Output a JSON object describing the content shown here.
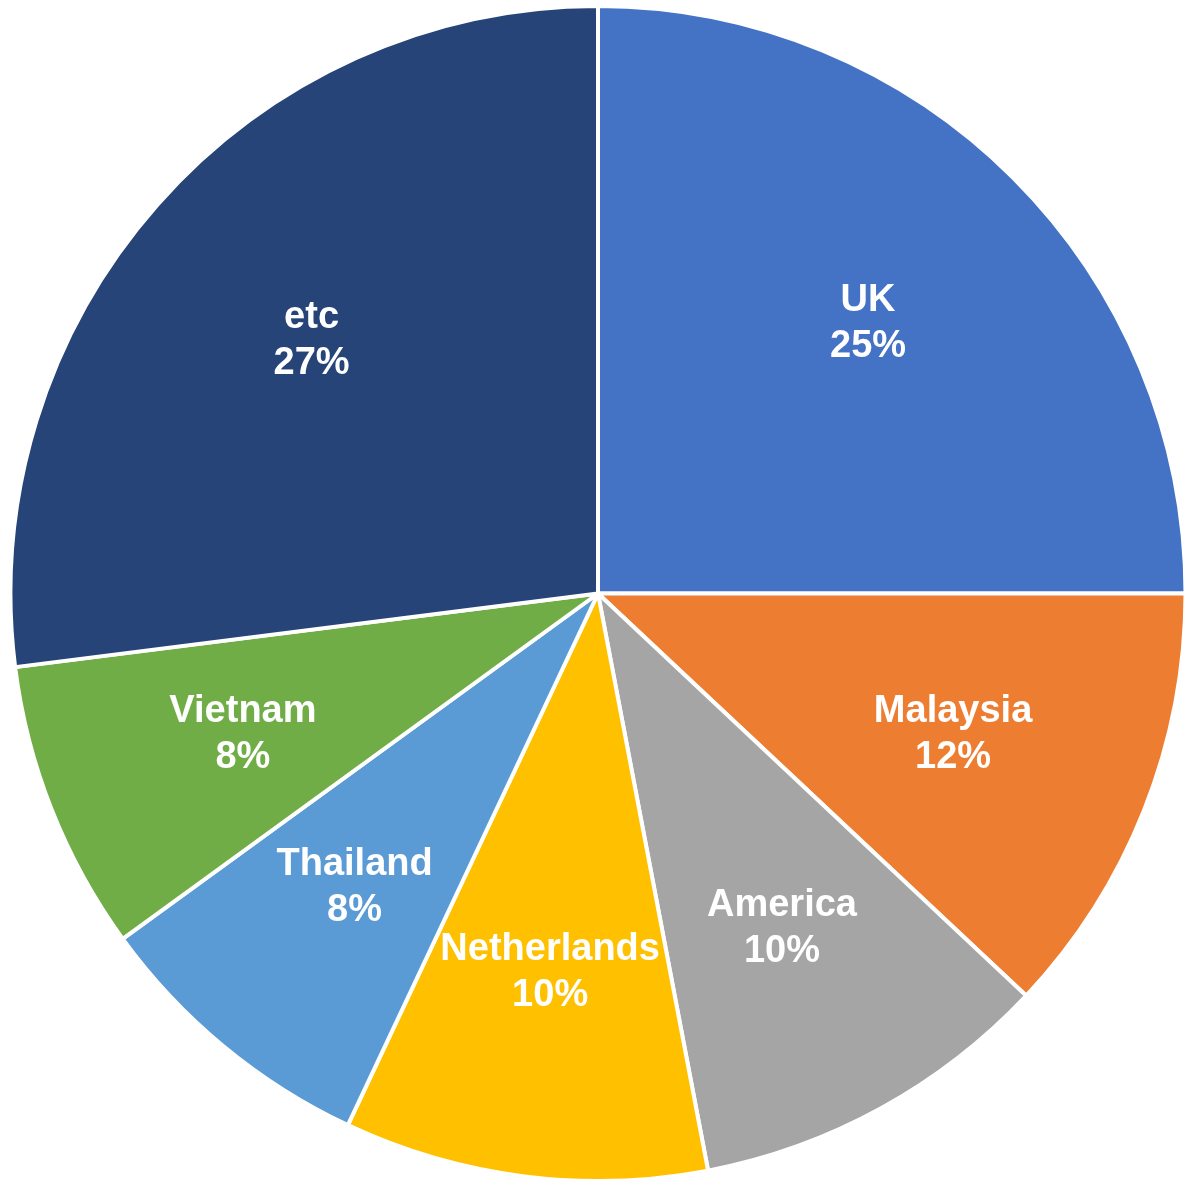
{
  "chart_data": {
    "type": "pie",
    "categories": [
      "UK",
      "Malaysia",
      "America",
      "Netherlands",
      "Thailand",
      "Vietnam",
      "etc"
    ],
    "values": [
      25,
      12,
      10,
      10,
      8,
      8,
      27
    ],
    "value_labels": [
      "25%",
      "12%",
      "10%",
      "10%",
      "8%",
      "8%",
      "27%"
    ],
    "colors": [
      "#4472c4",
      "#ed7d31",
      "#a5a5a5",
      "#ffc000",
      "#5b9bd5",
      "#70ad47",
      "#264478"
    ],
    "data_labels": true
  }
}
